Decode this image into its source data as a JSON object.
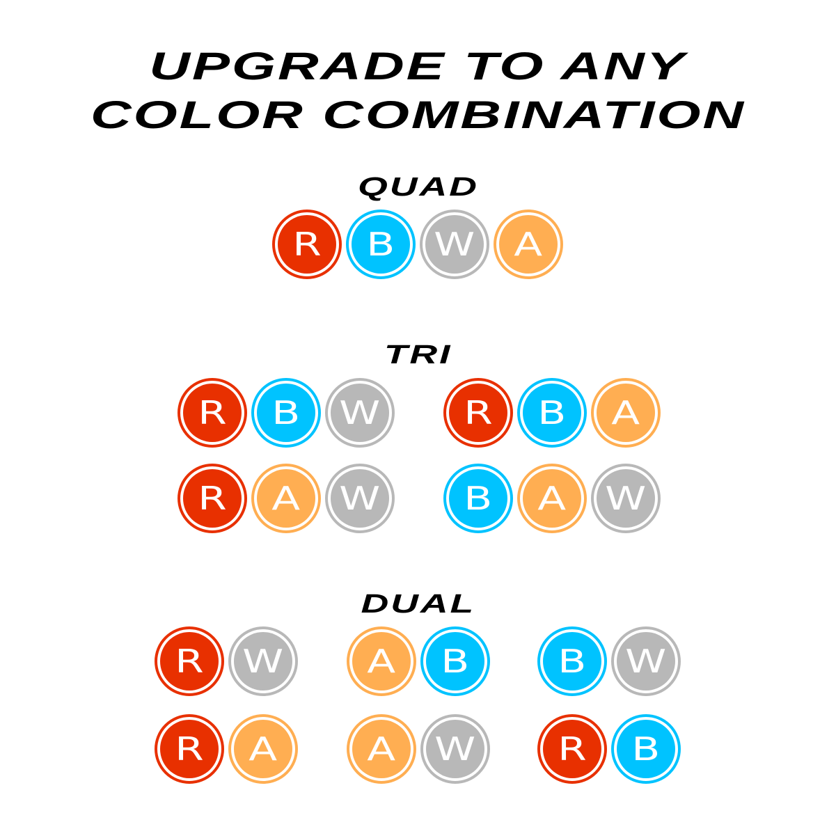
{
  "heading": {
    "line1": "UPGRADE TO ANY",
    "line2": "COLOR COMBINATION"
  },
  "colors": {
    "R": "#E83000",
    "B": "#00C3FF",
    "W": "#B8B8B8",
    "A": "#FFAE52"
  },
  "sections": [
    {
      "label": "QUAD",
      "groups": [
        [
          "R",
          "B",
          "W",
          "A"
        ]
      ]
    },
    {
      "label": "TRI",
      "groups": [
        [
          "R",
          "B",
          "W"
        ],
        [
          "R",
          "B",
          "A"
        ],
        [
          "R",
          "A",
          "W"
        ],
        [
          "B",
          "A",
          "W"
        ]
      ]
    },
    {
      "label": "DUAL",
      "groups": [
        [
          "R",
          "W"
        ],
        [
          "A",
          "B"
        ],
        [
          "B",
          "W"
        ],
        [
          "R",
          "A"
        ],
        [
          "A",
          "W"
        ],
        [
          "R",
          "B"
        ]
      ]
    }
  ]
}
